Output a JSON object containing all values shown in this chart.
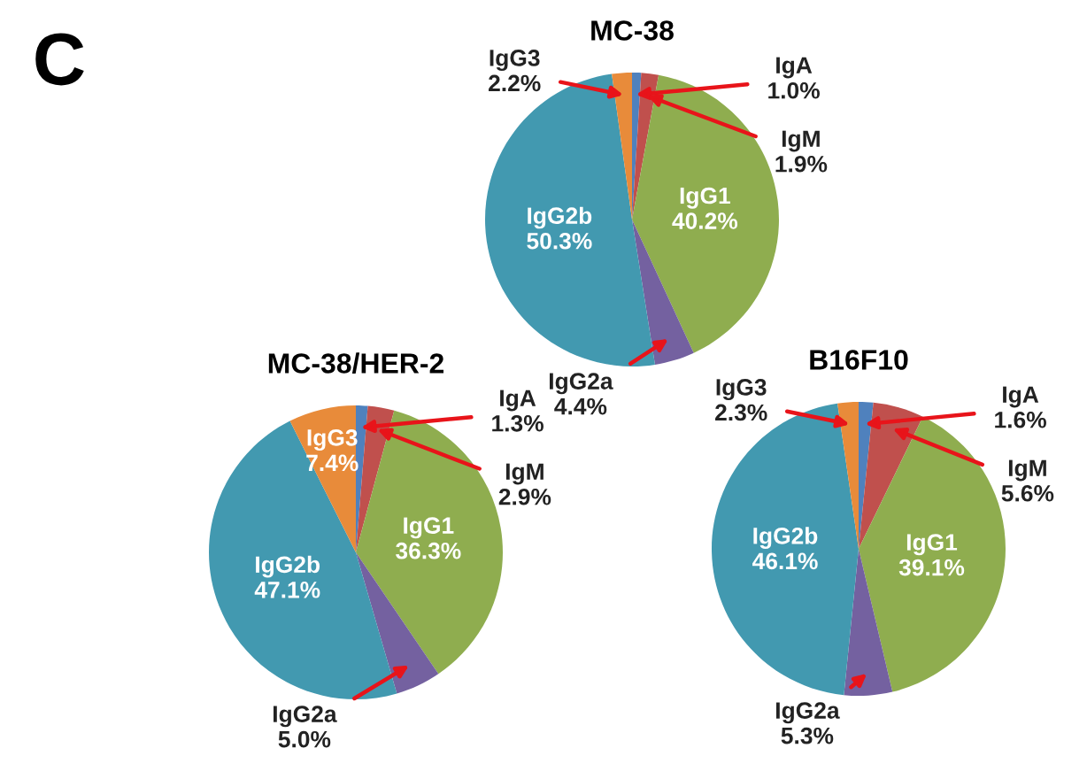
{
  "chart_data": [
    {
      "type": "pie",
      "title": "MC-38",
      "categories": [
        "IgA",
        "IgM",
        "IgG1",
        "IgG2a",
        "IgG2b",
        "IgG3"
      ],
      "values": [
        1.0,
        1.9,
        40.2,
        4.4,
        50.3,
        2.2
      ],
      "value_labels": [
        "1.0%",
        "1.9%",
        "40.2%",
        "4.4%",
        "50.3%",
        "2.2%"
      ],
      "colors": [
        "#4f81bd",
        "#c0504d",
        "#8fad4f",
        "#7461a0",
        "#4299b0",
        "#e88b3a"
      ],
      "annotations": [
        "C"
      ]
    },
    {
      "type": "pie",
      "title": "MC-38/HER-2",
      "categories": [
        "IgA",
        "IgM",
        "IgG1",
        "IgG2a",
        "IgG2b",
        "IgG3"
      ],
      "values": [
        1.3,
        2.9,
        36.3,
        5.0,
        47.1,
        7.4
      ],
      "value_labels": [
        "1.3%",
        "2.9%",
        "36.3%",
        "5.0%",
        "47.1%",
        "7.4%"
      ],
      "colors": [
        "#4f81bd",
        "#c0504d",
        "#8fad4f",
        "#7461a0",
        "#4299b0",
        "#e88b3a"
      ]
    },
    {
      "type": "pie",
      "title": "B16F10",
      "categories": [
        "IgA",
        "IgM",
        "IgG1",
        "IgG2a",
        "IgG2b",
        "IgG3"
      ],
      "values": [
        1.6,
        5.6,
        39.1,
        5.3,
        46.1,
        2.3
      ],
      "value_labels": [
        "1.6%",
        "5.6%",
        "39.1%",
        "5.3%",
        "46.1%",
        "2.3%"
      ],
      "colors": [
        "#4f81bd",
        "#c0504d",
        "#8fad4f",
        "#7461a0",
        "#4299b0",
        "#e88b3a"
      ]
    }
  ]
}
